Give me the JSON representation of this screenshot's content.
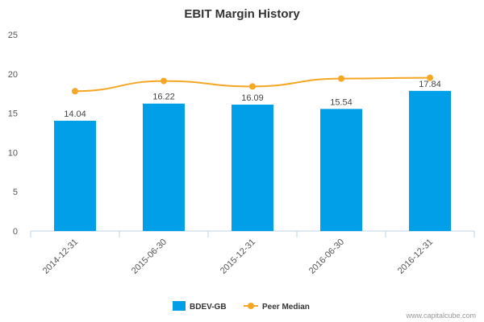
{
  "chart_data": {
    "type": "bar",
    "title": "EBIT Margin History",
    "categories": [
      "2014-12-31",
      "2015-06-30",
      "2015-12-31",
      "2016-06-30",
      "2016-12-31"
    ],
    "series": [
      {
        "name": "BDEV-GB",
        "type": "bar",
        "values": [
          14.04,
          16.22,
          16.09,
          15.54,
          17.84
        ],
        "color": "#009fe8"
      },
      {
        "name": "Peer Median",
        "type": "line",
        "values": [
          17.8,
          19.1,
          18.4,
          19.4,
          19.5
        ],
        "color": "#f5a623"
      }
    ],
    "data_labels": [
      "14.04",
      "16.22",
      "16.09",
      "15.54",
      "17.84"
    ],
    "yticks": [
      "0",
      "5",
      "10",
      "15",
      "20",
      "25"
    ],
    "ylim": [
      0,
      25
    ],
    "xlabel": "",
    "ylabel": "",
    "grid": false,
    "legend_position": "bottom-center"
  },
  "credit": "www.capitalcube.com"
}
